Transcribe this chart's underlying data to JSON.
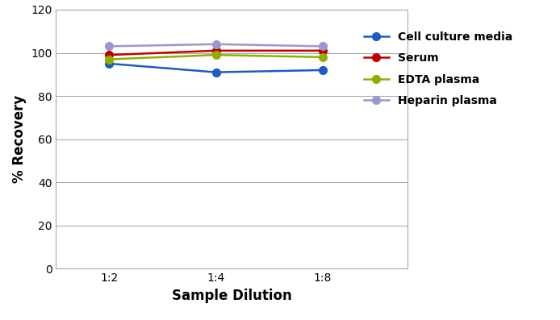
{
  "x_labels": [
    "1:2",
    "1:4",
    "1:8"
  ],
  "x_positions": [
    1,
    2,
    3
  ],
  "series": [
    {
      "label": "Cell culture media",
      "color": "#1f5bc4",
      "values": [
        95,
        91,
        92
      ]
    },
    {
      "label": "Serum",
      "color": "#c00000",
      "values": [
        99,
        101,
        101
      ]
    },
    {
      "label": "EDTA plasma",
      "color": "#8db000",
      "values": [
        97,
        99,
        98
      ]
    },
    {
      "label": "Heparin plasma",
      "color": "#9999d0",
      "values": [
        103,
        104,
        103
      ]
    }
  ],
  "ylabel": "% Recovery",
  "xlabel": "Sample Dilution",
  "ylim": [
    0,
    120
  ],
  "yticks": [
    0,
    20,
    40,
    60,
    80,
    100,
    120
  ],
  "xlim": [
    0.5,
    3.8
  ],
  "background_color": "#ffffff",
  "grid_color": "#aaaaaa",
  "marker": "o",
  "markersize": 7,
  "linewidth": 1.8,
  "legend_fontsize": 10,
  "axis_label_fontsize": 12,
  "tick_fontsize": 10
}
